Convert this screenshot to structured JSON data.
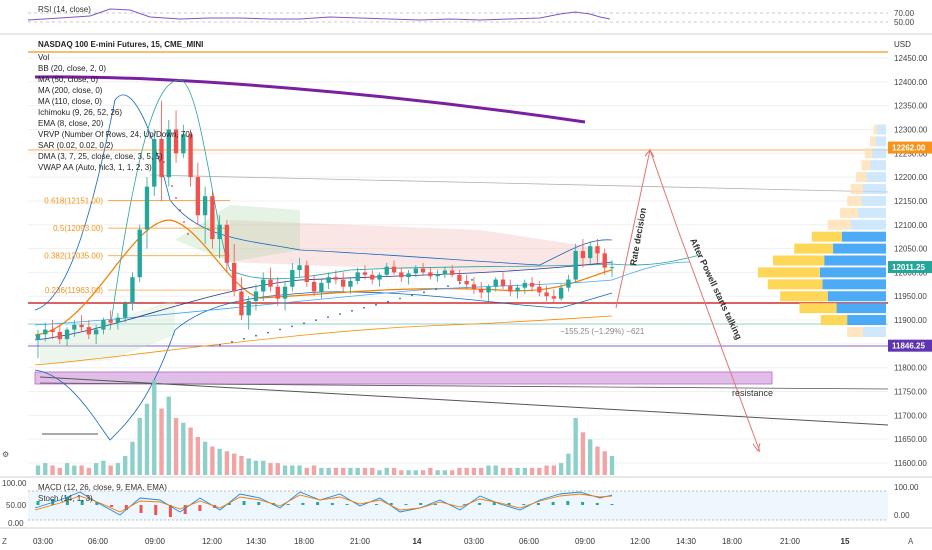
{
  "symbol_title": "NASDAQ 100 E-mini Futures, 15, CME_MINI",
  "currency": "USD",
  "indicators": [
    "Vol",
    "BB (20, close, 2, 0)",
    "MA (50, close, 0)",
    "MA (200, close, 0)",
    "MA (110, close, 0)",
    "Ichimoku (9, 26, 52, 26)",
    "EMA (8, close, 20)",
    "VRVP (Number Of Rows, 24, Up/Down, 70)",
    "SAR (0.02, 0.02, 0.2)",
    "DMA (3, 7, 25, close, close, 3, 5, 5)",
    "VWAP AA (Auto, hlc3, 1, 1, 2, 3)"
  ],
  "rsi": {
    "label": "RSI (14, close)",
    "ticks": [
      {
        "v": 70,
        "label": "70.00"
      },
      {
        "v": 50,
        "label": "50.00"
      }
    ]
  },
  "macd": {
    "label": "MACD (12, 26, close, 9, EMA, EMA)",
    "stoch_label": "Stoch (14, 1, 3)",
    "ticks_left": [
      "100.00",
      "50.00",
      "0.00"
    ],
    "ticks_right": [
      "100.00",
      "0.00"
    ]
  },
  "colors": {
    "up": "#26a69a",
    "down": "#ef5350",
    "purple": "#7b1fa2",
    "orange": "#f7931a",
    "blue": "#2196f3",
    "resistance": "#e1bee7"
  },
  "chart_data": {
    "type": "candlestick",
    "price_axis": [
      12450,
      12400,
      12350,
      12300,
      12250,
      12200,
      12150,
      12100,
      12050,
      12000,
      11950,
      11900,
      11850,
      11800,
      11750,
      11700,
      11650,
      11600
    ],
    "ylim": [
      11580,
      12480
    ],
    "time_labels": [
      "03:00",
      "06:00",
      "09:00",
      "12:00",
      "14:30",
      "18:00",
      "21:00",
      "14",
      "03:00",
      "06:00",
      "09:00",
      "12:00",
      "14:30",
      "18:00",
      "21:00",
      "15"
    ],
    "price_labels": [
      {
        "value": 12262.0,
        "text": "12262.00",
        "color": "#f7931a"
      },
      {
        "value": 12011.25,
        "text": "12011.25",
        "color": "#26a69a"
      },
      {
        "value": 11846.25,
        "text": "11846.25",
        "color": "#5e35b1"
      }
    ],
    "fib_levels": [
      {
        "label": "0.618(12151.00)",
        "value": 12151
      },
      {
        "label": "0.5(12093.00)",
        "value": 12093
      },
      {
        "label": "0.382(12035.00)",
        "value": 12035
      },
      {
        "label": "0.236(11963.00)",
        "value": 11963
      }
    ],
    "measure_text": "−155.25 (−1.29%) −621",
    "annotations": [
      "Rate decision",
      "After Powell starts talking",
      "resistance"
    ],
    "candles": [
      [
        11860,
        11880,
        11820,
        11870
      ],
      [
        11870,
        11895,
        11855,
        11880
      ],
      [
        11880,
        11900,
        11860,
        11875
      ],
      [
        11875,
        11890,
        11850,
        11860
      ],
      [
        11860,
        11885,
        11845,
        11880
      ],
      [
        11880,
        11900,
        11865,
        11890
      ],
      [
        11890,
        11910,
        11875,
        11885
      ],
      [
        11885,
        11900,
        11860,
        11870
      ],
      [
        11870,
        11890,
        11850,
        11880
      ],
      [
        11880,
        11905,
        11870,
        11900
      ],
      [
        11900,
        11920,
        11890,
        11895
      ],
      [
        11895,
        11915,
        11880,
        11905
      ],
      [
        11905,
        11940,
        11895,
        11935
      ],
      [
        11935,
        12000,
        11920,
        11990
      ],
      [
        11990,
        12100,
        11980,
        12090
      ],
      [
        12090,
        12200,
        12050,
        12180
      ],
      [
        12180,
        12300,
        12160,
        12280
      ],
      [
        12280,
        12360,
        12150,
        12200
      ],
      [
        12200,
        12320,
        12180,
        12300
      ],
      [
        12300,
        12340,
        12230,
        12250
      ],
      [
        12250,
        12310,
        12240,
        12290
      ],
      [
        12290,
        12300,
        12180,
        12200
      ],
      [
        12200,
        12230,
        12100,
        12120
      ],
      [
        12120,
        12180,
        12060,
        12160
      ],
      [
        12160,
        12170,
        12050,
        12070
      ],
      [
        12070,
        12120,
        12030,
        12100
      ],
      [
        12100,
        12110,
        12000,
        12020
      ],
      [
        12020,
        12060,
        11950,
        11960
      ],
      [
        11960,
        11990,
        11900,
        11910
      ],
      [
        11910,
        11950,
        11880,
        11940
      ],
      [
        11940,
        11975,
        11920,
        11960
      ],
      [
        11960,
        12000,
        11940,
        11985
      ],
      [
        11985,
        12010,
        11960,
        11970
      ],
      [
        11970,
        11990,
        11930,
        11945
      ],
      [
        11945,
        11980,
        11920,
        11970
      ],
      [
        11970,
        12020,
        11960,
        12005
      ],
      [
        12005,
        12030,
        11990,
        12015
      ],
      [
        12015,
        12025,
        11970,
        11980
      ],
      [
        11980,
        11995,
        11950,
        11960
      ],
      [
        11960,
        11985,
        11945,
        11978
      ],
      [
        11978,
        12000,
        11965,
        11990
      ],
      [
        11990,
        12005,
        11975,
        11985
      ],
      [
        11985,
        12000,
        11960,
        11970
      ],
      [
        11970,
        11990,
        11955,
        11982
      ],
      [
        11982,
        12010,
        11975,
        12000
      ],
      [
        12000,
        12015,
        11985,
        11995
      ],
      [
        11995,
        12005,
        11975,
        11985
      ],
      [
        11985,
        12000,
        11970,
        11995
      ],
      [
        11995,
        12020,
        11990,
        12012
      ],
      [
        12012,
        12025,
        11995,
        12000
      ],
      [
        12000,
        12010,
        11980,
        11990
      ],
      [
        11990,
        12005,
        11975,
        11998
      ],
      [
        11998,
        12015,
        11990,
        12008
      ],
      [
        12008,
        12020,
        11995,
        12000
      ],
      [
        12000,
        12010,
        11985,
        11992
      ],
      [
        11992,
        12005,
        11980,
        11996
      ],
      [
        11996,
        12012,
        11988,
        12004
      ],
      [
        12004,
        12015,
        11990,
        11995
      ],
      [
        11995,
        12005,
        11975,
        11982
      ],
      [
        11982,
        11995,
        11965,
        11975
      ],
      [
        11975,
        11990,
        11955,
        11965
      ],
      [
        11965,
        11980,
        11945,
        11958
      ],
      [
        11958,
        11975,
        11940,
        11970
      ],
      [
        11970,
        11990,
        11960,
        11985
      ],
      [
        11985,
        12000,
        11965,
        11972
      ],
      [
        11972,
        11985,
        11950,
        11960
      ],
      [
        11960,
        11975,
        11945,
        11968
      ],
      [
        11968,
        11985,
        11955,
        11978
      ],
      [
        11978,
        11990,
        11960,
        11970
      ],
      [
        11970,
        11982,
        11950,
        11958
      ],
      [
        11958,
        11972,
        11940,
        11950
      ],
      [
        11950,
        11965,
        11935,
        11945
      ],
      [
        11945,
        11975,
        11940,
        11968
      ],
      [
        11968,
        11995,
        11960,
        11985
      ],
      [
        11985,
        12060,
        11980,
        12045
      ],
      [
        12045,
        12070,
        12010,
        12030
      ],
      [
        12030,
        12065,
        12015,
        12055
      ],
      [
        12055,
        12070,
        12020,
        12040
      ],
      [
        12040,
        12050,
        11995,
        12010
      ],
      [
        12010,
        12025,
        11990,
        12011
      ]
    ],
    "volume": [
      4,
      5,
      4,
      3,
      5,
      4,
      4,
      3,
      5,
      6,
      4,
      5,
      8,
      14,
      24,
      30,
      40,
      28,
      33,
      24,
      22,
      20,
      16,
      14,
      12,
      11,
      10,
      9,
      8,
      7,
      6,
      6,
      5,
      5,
      4,
      4,
      4,
      3,
      4,
      3,
      3,
      3,
      3,
      3,
      3,
      3,
      3,
      2,
      3,
      3,
      2,
      2,
      2,
      2,
      3,
      2,
      2,
      2,
      3,
      3,
      3,
      3,
      4,
      4,
      3,
      3,
      3,
      3,
      3,
      3,
      4,
      4,
      5,
      9,
      24,
      18,
      15,
      12,
      10,
      8
    ],
    "vrvp": [
      {
        "price": 12300,
        "up": 4,
        "down": 10
      },
      {
        "price": 12275,
        "up": 6,
        "down": 12
      },
      {
        "price": 12250,
        "up": 8,
        "down": 16
      },
      {
        "price": 12225,
        "up": 10,
        "down": 18
      },
      {
        "price": 12200,
        "up": 12,
        "down": 22
      },
      {
        "price": 12175,
        "up": 14,
        "down": 26
      },
      {
        "price": 12150,
        "up": 16,
        "down": 28
      },
      {
        "price": 12125,
        "up": 20,
        "down": 32
      },
      {
        "price": 12100,
        "up": 26,
        "down": 40
      },
      {
        "price": 12075,
        "up": 34,
        "down": 50
      },
      {
        "price": 12050,
        "up": 44,
        "down": 60
      },
      {
        "price": 12025,
        "up": 58,
        "down": 70
      },
      {
        "price": 12000,
        "up": 70,
        "down": 75
      },
      {
        "price": 11975,
        "up": 62,
        "down": 72
      },
      {
        "price": 11950,
        "up": 54,
        "down": 66
      },
      {
        "price": 11925,
        "up": 42,
        "down": 56
      },
      {
        "price": 11900,
        "up": 30,
        "down": 44
      },
      {
        "price": 11875,
        "up": 18,
        "down": 26
      }
    ]
  }
}
